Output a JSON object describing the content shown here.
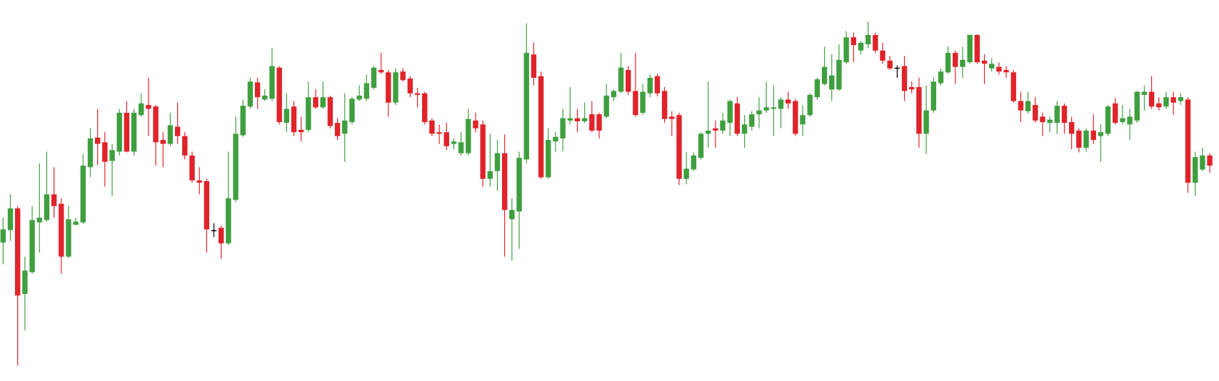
{
  "chart_data": {
    "type": "candlestick",
    "ylim": [
      0,
      490
    ],
    "up_color": "#3f9f3f",
    "down_color": "#e0232a",
    "flat_color": "#000000",
    "open": [
      178,
      194,
      222,
      112,
      140,
      204,
      207,
      240,
      228,
      160,
      201,
      204,
      275,
      313,
      307,
      283,
      295,
      345,
      295,
      342,
      355,
      353,
      310,
      305,
      327,
      315,
      290,
      258,
      257,
      194,
      197,
      177,
      233,
      316,
      353,
      384,
      362,
      363,
      403,
      332,
      353,
      323,
      323,
      365,
      352,
      365,
      332,
      318,
      333,
      362,
      363,
      377,
      400,
      397,
      358,
      398,
      389,
      370,
      370,
      335,
      320,
      320,
      305,
      293,
      293,
      335,
      330,
      260,
      270,
      293,
      208,
      218,
      285,
      420,
      392,
      262,
      308,
      312,
      335,
      338,
      334,
      343,
      343,
      340,
      365,
      372,
      400,
      373,
      345,
      370,
      392,
      373,
      340,
      342,
      260,
      272,
      287,
      318,
      325,
      322,
      332,
      357,
      318,
      327,
      343,
      348,
      350,
      350,
      362,
      360,
      330,
      342,
      365,
      382,
      375,
      375,
      410,
      442,
      425,
      433,
      445,
      425,
      412,
      403,
      405,
      378,
      378,
      318,
      348,
      383,
      397,
      422,
      404,
      410,
      445,
      412,
      402,
      404,
      400,
      397,
      360,
      347,
      355,
      340,
      332,
      332,
      354,
      333,
      322,
      300,
      322,
      315,
      318,
      357,
      333,
      330,
      335,
      368,
      372,
      357,
      353,
      365,
      360,
      362,
      255,
      272,
      290
    ],
    "high": [
      210,
      240,
      225,
      160,
      225,
      280,
      295,
      275,
      235,
      225,
      210,
      292,
      325,
      350,
      320,
      305,
      350,
      360,
      350,
      370,
      390,
      355,
      320,
      345,
      358,
      320,
      295,
      275,
      260,
      203,
      200,
      295,
      340,
      362,
      390,
      390,
      375,
      428,
      405,
      370,
      360,
      340,
      385,
      375,
      385,
      367,
      338,
      370,
      365,
      380,
      394,
      405,
      422,
      400,
      402,
      402,
      392,
      377,
      372,
      338,
      330,
      332,
      312,
      320,
      350,
      345,
      335,
      318,
      310,
      317,
      235,
      295,
      460,
      435,
      398,
      325,
      320,
      350,
      378,
      350,
      358,
      360,
      345,
      382,
      375,
      422,
      405,
      422,
      382,
      394,
      395,
      378,
      347,
      345,
      295,
      294,
      320,
      385,
      335,
      345,
      362,
      365,
      342,
      347,
      365,
      385,
      380,
      365,
      372,
      363,
      355,
      370,
      390,
      430,
      420,
      433,
      450,
      448,
      437,
      462,
      448,
      435,
      418,
      406,
      418,
      385,
      390,
      380,
      390,
      402,
      430,
      425,
      430,
      446,
      446,
      420,
      415,
      410,
      405,
      400,
      372,
      372,
      365,
      345,
      340,
      360,
      357,
      340,
      325,
      325,
      343,
      330,
      355,
      364,
      355,
      350,
      373,
      380,
      392,
      365,
      372,
      372,
      370,
      365,
      295,
      300,
      293
    ],
    "low": [
      150,
      180,
      20,
      65,
      138,
      165,
      205,
      210,
      138,
      158,
      200,
      202,
      262,
      278,
      250,
      238,
      290,
      294,
      290,
      340,
      315,
      277,
      275,
      302,
      305,
      285,
      255,
      240,
      165,
      185,
      157,
      175,
      230,
      314,
      350,
      350,
      360,
      360,
      330,
      320,
      315,
      308,
      320,
      350,
      350,
      325,
      310,
      282,
      330,
      360,
      360,
      375,
      395,
      340,
      355,
      385,
      365,
      352,
      330,
      315,
      305,
      297,
      298,
      290,
      290,
      320,
      250,
      250,
      245,
      160,
      155,
      170,
      280,
      380,
      260,
      260,
      295,
      295,
      330,
      320,
      332,
      320,
      312,
      338,
      360,
      370,
      368,
      340,
      342,
      365,
      366,
      332,
      315,
      252,
      253,
      270,
      285,
      300,
      300,
      318,
      315,
      315,
      300,
      322,
      325,
      345,
      315,
      325,
      350,
      315,
      315,
      340,
      362,
      380,
      360,
      373,
      408,
      410,
      420,
      428,
      422,
      408,
      400,
      390,
      360,
      370,
      300,
      292,
      345,
      380,
      395,
      382,
      390,
      408,
      408,
      382,
      398,
      394,
      390,
      358,
      333,
      344,
      332,
      315,
      320,
      318,
      318,
      298,
      294,
      295,
      305,
      282,
      315,
      330,
      330,
      310,
      332,
      348,
      350,
      348,
      350,
      342,
      355,
      242,
      238,
      270,
      268
    ],
    "close": [
      195,
      222,
      110,
      142,
      207,
      210,
      240,
      225,
      160,
      208,
      205,
      277,
      312,
      305,
      282,
      297,
      345,
      295,
      345,
      357,
      350,
      307,
      305,
      329,
      315,
      290,
      258,
      255,
      195,
      194,
      177,
      235,
      318,
      354,
      385,
      365,
      367,
      405,
      333,
      350,
      320,
      320,
      365,
      352,
      365,
      328,
      315,
      335,
      363,
      367,
      383,
      403,
      397,
      358,
      397,
      387,
      370,
      368,
      333,
      318,
      318,
      302,
      308,
      307,
      337,
      325,
      260,
      270,
      293,
      220,
      220,
      287,
      422,
      390,
      262,
      310,
      314,
      338,
      338,
      334,
      338,
      322,
      322,
      367,
      373,
      403,
      372,
      342,
      372,
      390,
      370,
      337,
      337,
      260,
      273,
      290,
      318,
      322,
      322,
      335,
      360,
      318,
      330,
      343,
      348,
      352,
      352,
      362,
      357,
      318,
      342,
      368,
      388,
      404,
      393,
      413,
      442,
      432,
      435,
      445,
      425,
      412,
      402,
      403,
      373,
      375,
      318,
      348,
      385,
      398,
      422,
      404,
      413,
      445,
      410,
      408,
      408,
      398,
      397,
      360,
      348,
      360,
      335,
      333,
      336,
      354,
      332,
      318,
      300,
      322,
      310,
      320,
      353,
      332,
      338,
      340,
      372,
      372,
      353,
      352,
      365,
      358,
      365,
      255,
      288,
      290,
      277
    ]
  }
}
